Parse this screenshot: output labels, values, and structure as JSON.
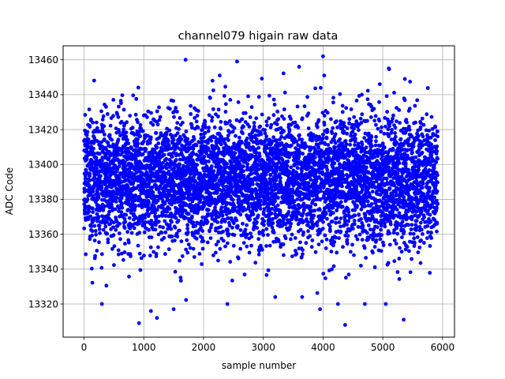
{
  "chart_data": {
    "type": "scatter",
    "title": "channel079 higain raw data",
    "xlabel": "sample number",
    "ylabel": "ADC Code",
    "xlim": [
      -350,
      6200
    ],
    "ylim": [
      13301,
      13468
    ],
    "xticks": [
      0,
      1000,
      2000,
      3000,
      4000,
      5000,
      6000
    ],
    "yticks": [
      13320,
      13340,
      13360,
      13380,
      13400,
      13420,
      13440,
      13460
    ],
    "grid": true,
    "marker_color": "#0000ff",
    "n_samples": 5920,
    "noise_model": {
      "mean": 13391,
      "std": 18,
      "min": 13309,
      "max": 13462
    },
    "outliers": [
      {
        "x": 1700,
        "y": 13460
      },
      {
        "x": 2560,
        "y": 13459
      },
      {
        "x": 4000,
        "y": 13462
      },
      {
        "x": 3600,
        "y": 13456
      },
      {
        "x": 4020,
        "y": 13451
      },
      {
        "x": 5100,
        "y": 13455
      },
      {
        "x": 4950,
        "y": 13446
      },
      {
        "x": 2150,
        "y": 13448
      },
      {
        "x": 2270,
        "y": 13451
      },
      {
        "x": 5370,
        "y": 13449
      },
      {
        "x": 920,
        "y": 13309
      },
      {
        "x": 4370,
        "y": 13308
      },
      {
        "x": 5350,
        "y": 13311
      },
      {
        "x": 1220,
        "y": 13312
      },
      {
        "x": 1120,
        "y": 13316
      },
      {
        "x": 1500,
        "y": 13317
      },
      {
        "x": 3950,
        "y": 13317
      },
      {
        "x": 4250,
        "y": 13320
      },
      {
        "x": 4700,
        "y": 13320
      },
      {
        "x": 5050,
        "y": 13320
      },
      {
        "x": 2400,
        "y": 13320
      },
      {
        "x": 300,
        "y": 13320
      },
      {
        "x": 3200,
        "y": 13324
      },
      {
        "x": 3650,
        "y": 13324
      }
    ]
  }
}
